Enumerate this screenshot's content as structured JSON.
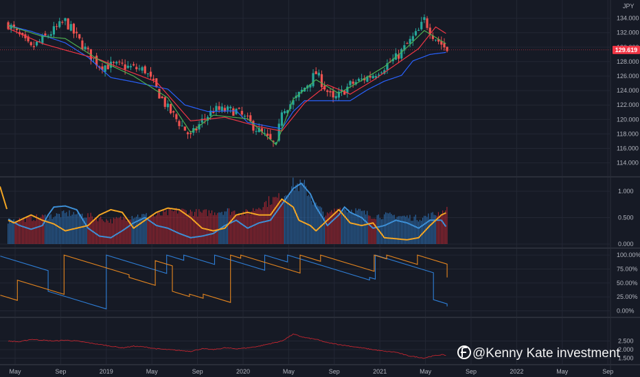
{
  "chart_data": [
    {
      "type": "candlestick",
      "panel": "price",
      "currency": "JPY",
      "last_price": "129.619",
      "last_price_value": 129.619,
      "ylim": [
        113.2,
        135.2
      ],
      "y_ticks": [
        "134.000",
        "132.000",
        "130.000",
        "128.000",
        "126.000",
        "124.000",
        "122.000",
        "120.000",
        "118.000",
        "116.000",
        "114.000"
      ],
      "x_ticks": [
        "May",
        "Sep",
        "2019",
        "May",
        "Sep",
        "2020",
        "May",
        "Sep",
        "2021",
        "May",
        "Sep",
        "2022",
        "May",
        "Sep"
      ],
      "x_tick_values": [
        0,
        4,
        8,
        12,
        16,
        20,
        24,
        28,
        32,
        36,
        40,
        44,
        48,
        52
      ],
      "close_anchors": [
        [
          0,
          133.2
        ],
        [
          2,
          129.8
        ],
        [
          5,
          133.6
        ],
        [
          7,
          129.2
        ],
        [
          8,
          127.5
        ],
        [
          10,
          127.4
        ],
        [
          12,
          126.8
        ],
        [
          14,
          121.5
        ],
        [
          16,
          117.6
        ],
        [
          17,
          119.8
        ],
        [
          18,
          121.3
        ],
        [
          20,
          121.2
        ],
        [
          22,
          118.4
        ],
        [
          23.5,
          116.2
        ],
        [
          24,
          121.4
        ],
        [
          25,
          122.4
        ],
        [
          27,
          126.4
        ],
        [
          28.5,
          122.6
        ],
        [
          30,
          124.8
        ],
        [
          32,
          126.2
        ],
        [
          34,
          128.5
        ],
        [
          36,
          132.2
        ],
        [
          36.5,
          133.8
        ],
        [
          37.2,
          131.8
        ],
        [
          38.5,
          129.6
        ]
      ],
      "series": [
        {
          "name": "",
          "color": "#2962ff",
          "anchors": [
            [
              0,
              133.0
            ],
            [
              2,
              132.2
            ],
            [
              5,
              130.6
            ],
            [
              7,
              128.6
            ],
            [
              9,
              125.8
            ],
            [
              11,
              125.2
            ],
            [
              14,
              124.2
            ],
            [
              15.5,
              122.0
            ],
            [
              17.5,
              121.1
            ],
            [
              20,
              121.2
            ],
            [
              21,
              119.6
            ],
            [
              24,
              118.7
            ],
            [
              25,
              121.1
            ],
            [
              26,
              122.6
            ],
            [
              27.5,
              122.6
            ],
            [
              30,
              122.6
            ],
            [
              31.5,
              124.1
            ],
            [
              33,
              125.3
            ],
            [
              34.5,
              126.1
            ],
            [
              35.5,
              128.1
            ],
            [
              37,
              129.0
            ],
            [
              38.5,
              129.3
            ]
          ]
        },
        {
          "name": "",
          "color": "#f23645",
          "anchors": [
            [
              0,
              132.6
            ],
            [
              3,
              130.5
            ],
            [
              5,
              129.6
            ],
            [
              8,
              128.3
            ],
            [
              10,
              127.0
            ],
            [
              13,
              125.2
            ],
            [
              16,
              119.8
            ],
            [
              19,
              120.3
            ],
            [
              22,
              119.0
            ],
            [
              24,
              118.4
            ],
            [
              26,
              122.3
            ],
            [
              28,
              124.8
            ],
            [
              30,
              123.5
            ],
            [
              32,
              125.4
            ],
            [
              34,
              127.6
            ],
            [
              36,
              129.8
            ],
            [
              37.5,
              132.8
            ],
            [
              38.5,
              131.8
            ]
          ]
        },
        {
          "name": "",
          "color": "#4caf50",
          "anchors": [
            [
              0,
              133.0
            ],
            [
              3,
              131.5
            ],
            [
              5,
              131.2
            ],
            [
              8,
              128.2
            ],
            [
              11,
              126.0
            ],
            [
              14,
              123.0
            ],
            [
              16,
              118.2
            ],
            [
              18,
              120.6
            ],
            [
              21,
              120.1
            ],
            [
              23.5,
              116.5
            ],
            [
              25,
              122.8
            ],
            [
              27,
              125.5
            ],
            [
              29,
              123.6
            ],
            [
              31,
              125.4
            ],
            [
              33,
              127.3
            ],
            [
              35,
              130.0
            ],
            [
              36.5,
              132.3
            ],
            [
              38.5,
              130.4
            ]
          ]
        }
      ]
    },
    {
      "type": "bar+line",
      "panel": "oscillator",
      "ylim": [
        0,
        1.22
      ],
      "y_ticks": [
        "1.000",
        "0.500",
        "0.000"
      ],
      "y_tick_values": [
        1.0,
        0.5,
        0.0
      ],
      "bar_colors": {
        "up": "#b22833",
        "down": "#2e6fb0"
      },
      "bar_anchors": [
        [
          0,
          0.45
        ],
        [
          2,
          0.5
        ],
        [
          4,
          0.55
        ],
        [
          5.5,
          0.6
        ],
        [
          7,
          0.55
        ],
        [
          9,
          0.45
        ],
        [
          11,
          0.55
        ],
        [
          13,
          0.55
        ],
        [
          15,
          0.65
        ],
        [
          17,
          0.6
        ],
        [
          19,
          0.65
        ],
        [
          21,
          0.6
        ],
        [
          23,
          0.85
        ],
        [
          24,
          0.9
        ],
        [
          25,
          1.15
        ],
        [
          26,
          1.12
        ],
        [
          27,
          0.75
        ],
        [
          28,
          0.55
        ],
        [
          29,
          0.7
        ],
        [
          30.5,
          0.65
        ],
        [
          32,
          0.55
        ],
        [
          34,
          0.55
        ],
        [
          36,
          0.5
        ],
        [
          37,
          0.55
        ],
        [
          38.5,
          0.65
        ]
      ],
      "series": [
        {
          "name": "",
          "color": "#3d8fd6",
          "anchors": [
            [
              0,
              0.47
            ],
            [
              1,
              0.35
            ],
            [
              2,
              0.28
            ],
            [
              3,
              0.35
            ],
            [
              3.5,
              0.55
            ],
            [
              4,
              0.7
            ],
            [
              5,
              0.72
            ],
            [
              6,
              0.65
            ],
            [
              7,
              0.3
            ],
            [
              8,
              0.15
            ],
            [
              9,
              0.12
            ],
            [
              10,
              0.25
            ],
            [
              11,
              0.4
            ],
            [
              12,
              0.5
            ],
            [
              13,
              0.35
            ],
            [
              14,
              0.3
            ],
            [
              15,
              0.2
            ],
            [
              16,
              0.12
            ],
            [
              17,
              0.15
            ],
            [
              18,
              0.2
            ],
            [
              19,
              0.35
            ],
            [
              20,
              0.45
            ],
            [
              21,
              0.3
            ],
            [
              22,
              0.4
            ],
            [
              23,
              0.45
            ],
            [
              24,
              0.75
            ],
            [
              25,
              1.05
            ],
            [
              25.7,
              1.15
            ],
            [
              26.5,
              0.95
            ],
            [
              27,
              0.7
            ],
            [
              28,
              0.35
            ],
            [
              29,
              0.55
            ],
            [
              29.5,
              0.7
            ],
            [
              30,
              0.6
            ],
            [
              31,
              0.5
            ],
            [
              32,
              0.3
            ],
            [
              33,
              0.35
            ],
            [
              34,
              0.45
            ],
            [
              35,
              0.4
            ],
            [
              36,
              0.3
            ],
            [
              37,
              0.45
            ],
            [
              38,
              0.45
            ],
            [
              38.5,
              0.3
            ]
          ]
        },
        {
          "name": "",
          "color": "#f5a623",
          "anchors": [
            [
              0,
              0.45
            ],
            [
              0.5,
              0.4
            ],
            [
              2,
              0.55
            ],
            [
              3,
              0.45
            ],
            [
              4,
              0.38
            ],
            [
              5,
              0.25
            ],
            [
              6,
              0.3
            ],
            [
              7,
              0.35
            ],
            [
              8,
              0.55
            ],
            [
              9,
              0.65
            ],
            [
              10,
              0.6
            ],
            [
              11,
              0.3
            ],
            [
              12,
              0.45
            ],
            [
              13,
              0.6
            ],
            [
              14,
              0.68
            ],
            [
              15,
              0.65
            ],
            [
              16,
              0.5
            ],
            [
              17,
              0.3
            ],
            [
              18,
              0.25
            ],
            [
              19,
              0.3
            ],
            [
              20,
              0.55
            ],
            [
              21,
              0.6
            ],
            [
              22,
              0.55
            ],
            [
              23,
              0.55
            ],
            [
              24,
              0.85
            ],
            [
              25,
              0.7
            ],
            [
              25.5,
              0.45
            ],
            [
              26.5,
              0.35
            ],
            [
              27,
              0.25
            ],
            [
              28,
              0.45
            ],
            [
              29,
              0.65
            ],
            [
              30,
              0.4
            ],
            [
              31,
              0.35
            ],
            [
              32,
              0.4
            ],
            [
              33,
              0.12
            ],
            [
              34,
              0.1
            ],
            [
              35,
              0.08
            ],
            [
              36,
              0.12
            ],
            [
              37,
              0.35
            ],
            [
              38,
              0.55
            ],
            [
              38.5,
              0.6
            ]
          ]
        }
      ]
    },
    {
      "type": "line",
      "panel": "aroon",
      "ylim": [
        -0.08,
        1.1
      ],
      "y_ticks": [
        "100.00%",
        "75.00%",
        "50.00%",
        "25.00%",
        "0.00%"
      ],
      "y_tick_values": [
        1.0,
        0.75,
        0.5,
        0.25,
        0.0
      ],
      "series": [
        {
          "name": "",
          "color": "#2e7fd8",
          "resets": [
            [
              -1,
              1.0
            ],
            [
              3.5,
              0.35
            ],
            [
              8.6,
              1.0
            ],
            [
              13.9,
              1.0
            ],
            [
              15.4,
              1.0
            ],
            [
              18.1,
              1.0
            ],
            [
              22.5,
              1.0
            ],
            [
              24.5,
              1.0
            ],
            [
              31.7,
              0.6
            ],
            [
              32.2,
              1.0
            ],
            [
              37.3,
              0.2
            ]
          ],
          "slope": 0.062,
          "floor": 0,
          "end": [
            38.5,
            0.08
          ]
        },
        {
          "name": "",
          "color": "#e8871e",
          "resets": [
            [
              -1,
              0.3
            ],
            [
              0.8,
              0.55
            ],
            [
              4.9,
              1.0
            ],
            [
              10.6,
              0.6
            ],
            [
              12.9,
              0.9
            ],
            [
              14.4,
              0.35
            ],
            [
              15.9,
              0.3
            ],
            [
              17.1,
              0.3
            ],
            [
              19.5,
              1.0
            ],
            [
              20.4,
              1.0
            ],
            [
              25.6,
              1.0
            ],
            [
              27.4,
              1.0
            ],
            [
              32.1,
              1.0
            ],
            [
              33.2,
              1.0
            ],
            [
              35.9,
              1.0
            ]
          ],
          "slope": 0.062,
          "floor": 0,
          "end": [
            38.5,
            0.6
          ]
        }
      ]
    },
    {
      "type": "line",
      "panel": "lower",
      "ylim": [
        1.2,
        3.6
      ],
      "y_ticks": [
        "2.500",
        "2.000",
        "1.500"
      ],
      "y_tick_values": [
        2.5,
        2.0,
        1.5
      ],
      "series": [
        {
          "name": "",
          "color": "#c2252f",
          "anchors": [
            [
              0,
              2.5
            ],
            [
              1,
              2.45
            ],
            [
              2,
              2.6
            ],
            [
              3,
              2.55
            ],
            [
              4,
              2.5
            ],
            [
              5,
              2.55
            ],
            [
              6,
              2.5
            ],
            [
              7,
              2.4
            ],
            [
              8,
              2.3
            ],
            [
              9,
              2.2
            ],
            [
              10,
              2.1
            ],
            [
              11,
              2.2
            ],
            [
              12,
              2.15
            ],
            [
              13,
              2.05
            ],
            [
              14,
              2.0
            ],
            [
              15,
              1.95
            ],
            [
              16,
              1.9
            ],
            [
              17,
              2.05
            ],
            [
              18,
              2.0
            ],
            [
              19,
              2.1
            ],
            [
              20,
              2.05
            ],
            [
              21,
              2.1
            ],
            [
              22,
              2.2
            ],
            [
              23,
              2.35
            ],
            [
              24,
              2.5
            ],
            [
              25,
              2.9
            ],
            [
              26,
              2.7
            ],
            [
              27,
              2.6
            ],
            [
              28,
              2.4
            ],
            [
              29,
              2.3
            ],
            [
              30,
              2.2
            ],
            [
              31,
              2.1
            ],
            [
              32,
              2.0
            ],
            [
              33,
              1.9
            ],
            [
              34,
              1.85
            ],
            [
              35,
              1.65
            ],
            [
              36,
              1.55
            ],
            [
              36.5,
              1.5
            ],
            [
              37,
              1.6
            ],
            [
              38,
              1.7
            ],
            [
              38.5,
              1.65
            ]
          ]
        }
      ]
    }
  ],
  "watermark": {
    "text": "@Kenny Kate investment",
    "logo_icon": "brand-f-logo-icon"
  },
  "colors": {
    "background": "#161a25",
    "candle_up": "#26a69a",
    "candle_down": "#ef5350",
    "price_tag": "#f23645",
    "grid": "#232734",
    "divider": "#2a2e39",
    "axis_text": "#b2b5be"
  }
}
